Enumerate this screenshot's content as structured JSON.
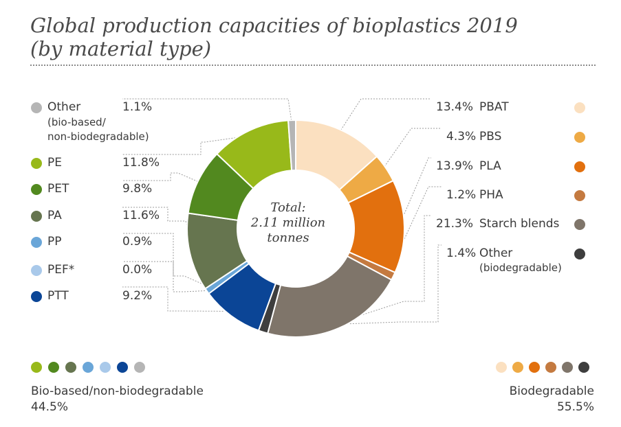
{
  "chart_data": {
    "type": "pie",
    "title": "Global production capacities of bioplastics 2019",
    "subtitle": "(by material type)",
    "center_label": [
      "Total:",
      "2.11 million",
      "tonnes"
    ],
    "slices": [
      {
        "label": "PBAT",
        "pct_label": "13.4%",
        "value": 13.4,
        "color": "#fbe0c0",
        "group": "biodegradable"
      },
      {
        "label": "PBS",
        "pct_label": "4.3%",
        "value": 4.3,
        "color": "#eeaa45",
        "group": "biodegradable"
      },
      {
        "label": "PLA",
        "pct_label": "13.9%",
        "value": 13.9,
        "color": "#e2700e",
        "group": "biodegradable"
      },
      {
        "label": "PHA",
        "pct_label": "1.2%",
        "value": 1.2,
        "color": "#c47a40",
        "group": "biodegradable"
      },
      {
        "label": "Starch blends",
        "pct_label": "21.3%",
        "value": 21.3,
        "color": "#7f756a",
        "group": "biodegradable"
      },
      {
        "label": "Other",
        "sublabel": "(biodegradable)",
        "pct_label": "1.4%",
        "value": 1.4,
        "color": "#3e3e3e",
        "group": "biodegradable"
      },
      {
        "label": "PTT",
        "pct_label": "9.2%",
        "value": 9.2,
        "color": "#0b4596",
        "group": "bio-based"
      },
      {
        "label": "PEF*",
        "pct_label": "0.0%",
        "value": 0.0,
        "color": "#a9c9ea",
        "group": "bio-based"
      },
      {
        "label": "PP",
        "pct_label": "0.9%",
        "value": 0.9,
        "color": "#6aa6d8",
        "group": "bio-based"
      },
      {
        "label": "PA",
        "pct_label": "11.6%",
        "value": 11.6,
        "color": "#66754f",
        "group": "bio-based"
      },
      {
        "label": "PET",
        "pct_label": "9.8%",
        "value": 9.8,
        "color": "#52891f",
        "group": "bio-based"
      },
      {
        "label": "PE",
        "pct_label": "11.8%",
        "value": 11.8,
        "color": "#98b91a",
        "group": "bio-based"
      },
      {
        "label": "Other",
        "sublabel_lines": [
          "(bio-based/",
          "non-biodegradable)"
        ],
        "pct_label": "1.1%",
        "value": 1.1,
        "color": "#b5b5b5",
        "group": "bio-based"
      }
    ],
    "groups": [
      {
        "name": "Bio-based/non-biodegradable",
        "total_label": "44.5%",
        "value": 44.5
      },
      {
        "name": "Biodegradable",
        "total_label": "55.5%",
        "value": 55.5
      }
    ]
  }
}
